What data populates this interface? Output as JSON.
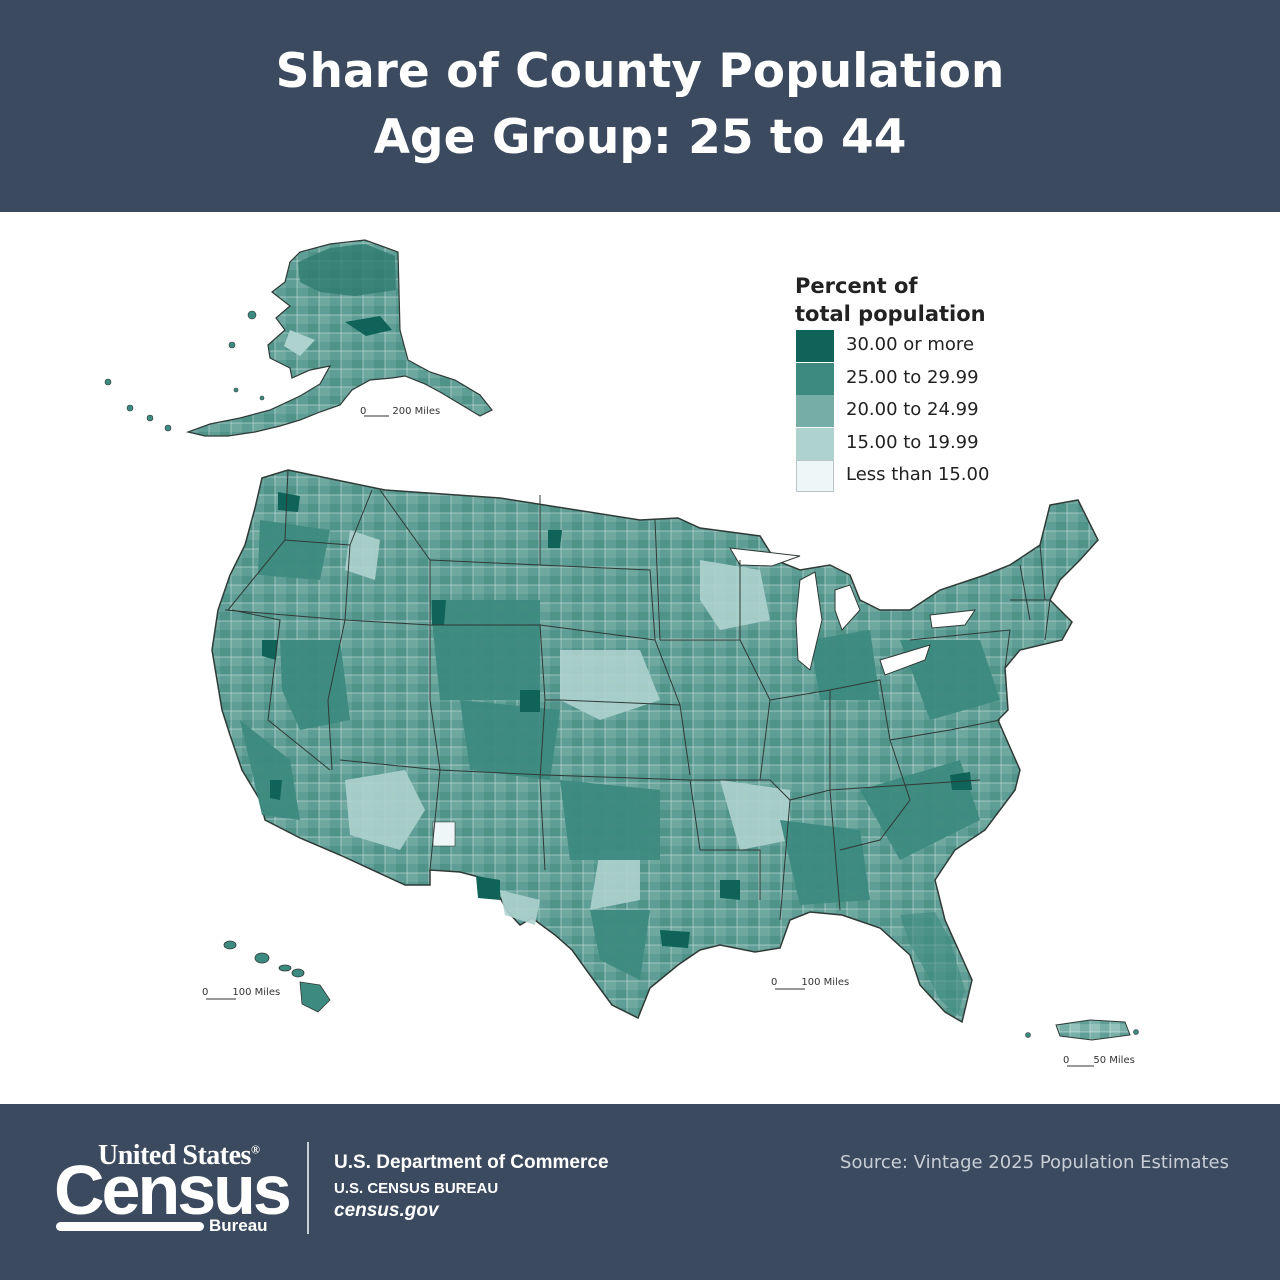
{
  "header": {
    "title_line1": "Share of County Population",
    "title_line2": "Age Group: 25 to 44"
  },
  "legend": {
    "title_line1": "Percent of",
    "title_line2": "total population",
    "classes": [
      {
        "label": "30.00 or more",
        "color": "#0f6358"
      },
      {
        "label": "25.00 to 29.99",
        "color": "#3d8a80"
      },
      {
        "label": "20.00 to 24.99",
        "color": "#76ada6"
      },
      {
        "label": "15.00 to 19.99",
        "color": "#aed2ce"
      },
      {
        "label": "Less than 15.00",
        "color": "#eef6f8"
      }
    ]
  },
  "map": {
    "regions": [
      "Alaska",
      "Conterminous United States",
      "Hawaii",
      "Puerto Rico"
    ],
    "boundary_color": "#2f3a36"
  },
  "scale_bars": {
    "alaska": {
      "zero": "0",
      "label": "200 Miles"
    },
    "conus": {
      "zero": "0",
      "label": "100 Miles"
    },
    "hawaii": {
      "zero": "0",
      "label": "100 Miles"
    },
    "puerto_rico": {
      "zero": "0",
      "label": "50 Miles"
    }
  },
  "footer": {
    "logo_line1": "United States",
    "logo_reg": "®",
    "logo_line2": "Census",
    "logo_line3": "Bureau",
    "dept": "U.S. Department of Commerce",
    "bureau": "U.S. CENSUS BUREAU",
    "website": "census.gov",
    "source": "Source: Vintage 2025 Population Estimates"
  },
  "colors": {
    "banner": "#3b4a5e",
    "banner_text": "#ffffff",
    "source_text": "#c8ced8"
  }
}
